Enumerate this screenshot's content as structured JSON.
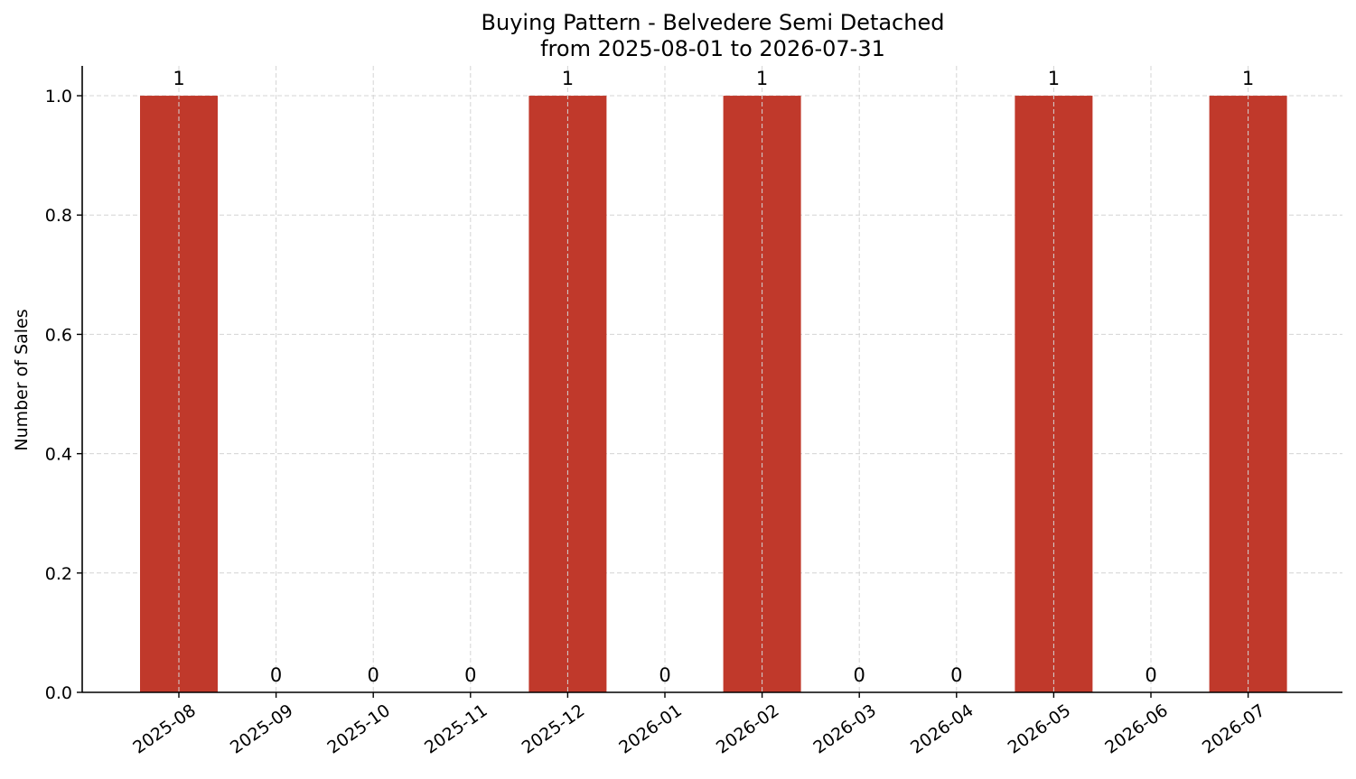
{
  "chart_data": {
    "type": "bar",
    "title": "Buying Pattern - Belvedere Semi Detached",
    "subtitle": "from 2025-08-01 to 2026-07-31",
    "xlabel": "",
    "ylabel": "Number of Sales",
    "categories": [
      "2025-08",
      "2025-09",
      "2025-10",
      "2025-11",
      "2025-12",
      "2026-01",
      "2026-02",
      "2026-03",
      "2026-04",
      "2026-05",
      "2026-06",
      "2026-07"
    ],
    "values": [
      1,
      0,
      0,
      0,
      1,
      0,
      1,
      0,
      0,
      1,
      0,
      1
    ],
    "data_labels": [
      "1",
      "0",
      "0",
      "0",
      "1",
      "0",
      "1",
      "0",
      "0",
      "1",
      "0",
      "1"
    ],
    "ylim": [
      0,
      1.05
    ],
    "yticks": [
      "0.0",
      "0.2",
      "0.4",
      "0.6",
      "0.8",
      "1.0"
    ],
    "grid": true,
    "bar_color": "#c0392b",
    "x_tick_rotation": 35
  }
}
